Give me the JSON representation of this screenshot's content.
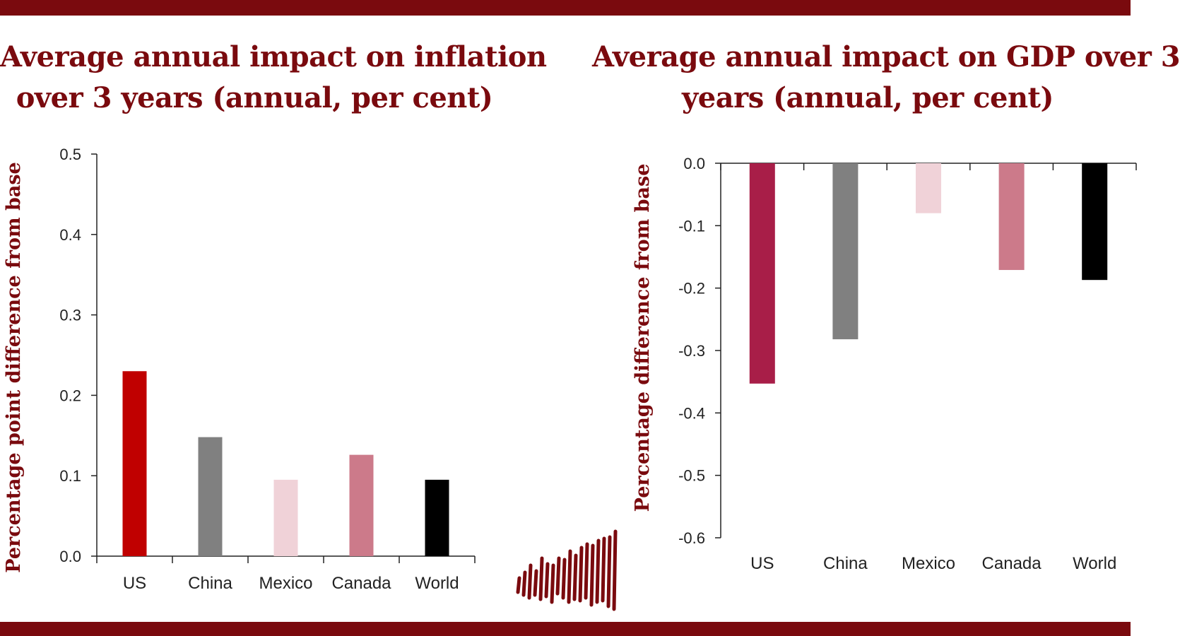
{
  "colors": {
    "brand": "#7a0a0e",
    "us_inflation": "#c00000",
    "us_gdp": "#a81e48",
    "china": "#808080",
    "mexico": "#f0d2d8",
    "canada": "#cc7a8a",
    "world": "#000000"
  },
  "logo": {
    "icon": "bars-logo-icon"
  },
  "chart_data": [
    {
      "type": "bar",
      "title": "Average annual impact on inflation over 3 years (annual, per cent)",
      "title_lines": [
        "Average annual impact on inflation",
        "over 3 years (annual, per cent)"
      ],
      "xlabel": "",
      "ylabel": "Percentage point difference from base",
      "categories": [
        "US",
        "China",
        "Mexico",
        "Canada",
        "World"
      ],
      "values": [
        0.23,
        0.148,
        0.095,
        0.126,
        0.095
      ],
      "bar_colors": [
        "#c00000",
        "#808080",
        "#f0d2d8",
        "#cc7a8a",
        "#000000"
      ],
      "ylim": [
        0,
        0.5
      ],
      "yticks": [
        0.0,
        0.1,
        0.2,
        0.3,
        0.4,
        0.5
      ],
      "ytick_labels": [
        "0.0",
        "0.1",
        "0.2",
        "0.3",
        "0.4",
        "0.5"
      ],
      "grid": false,
      "legend": "none"
    },
    {
      "type": "bar",
      "title": "Average annual impact on GDP over 3 years (annual, per cent)",
      "title_lines": [
        "Average annual impact on GDP over 3",
        "years (annual, per cent)"
      ],
      "xlabel": "",
      "ylabel": "Percentage difference from base",
      "categories": [
        "US",
        "China",
        "Mexico",
        "Canada",
        "World"
      ],
      "values": [
        -0.353,
        -0.282,
        -0.08,
        -0.171,
        -0.187
      ],
      "bar_colors": [
        "#a81e48",
        "#808080",
        "#f0d2d8",
        "#cc7a8a",
        "#000000"
      ],
      "ylim": [
        -0.6,
        0
      ],
      "yticks": [
        0.0,
        -0.1,
        -0.2,
        -0.3,
        -0.4,
        -0.5,
        -0.6
      ],
      "ytick_labels": [
        "0.0",
        "-0.1",
        "-0.2",
        "-0.3",
        "-0.4",
        "-0.5",
        "-0.6"
      ],
      "grid": false,
      "legend": "none"
    }
  ]
}
